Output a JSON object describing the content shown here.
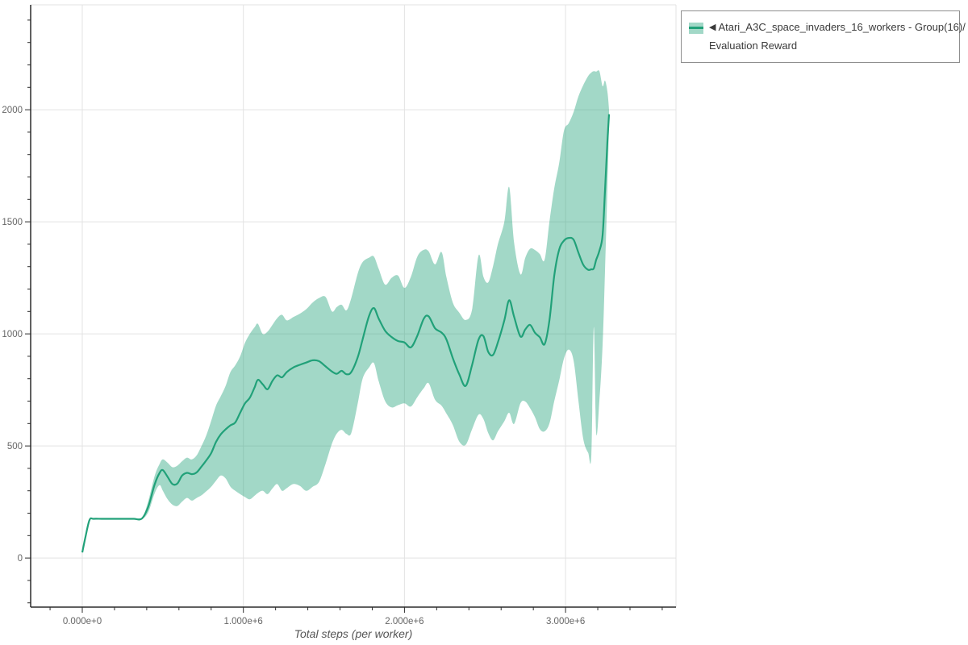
{
  "legend": {
    "toggle_icon": "◀",
    "lines": [
      "Atari_A3C_space_invaders_16_workers - Group(16)/",
      "Evaluation Reward"
    ]
  },
  "chart_data": {
    "type": "line",
    "title": "",
    "xlabel": "Total steps (per worker)",
    "ylabel": "",
    "grid": true,
    "legend_position": "top-right-outside",
    "x_unit": "steps (values in millions)",
    "x_axis": {
      "range_e6": [
        -0.3205,
        3.6855
      ],
      "major_ticks": [
        {
          "v": 0,
          "label": "0.000e+0"
        },
        {
          "v": 1,
          "label": "1.000e+6"
        },
        {
          "v": 2,
          "label": "2.000e+6"
        },
        {
          "v": 3,
          "label": "3.000e+6"
        }
      ],
      "minor_tick_step_e6": 0.2,
      "minor_tick_range_e6": [
        -0.2,
        3.6
      ]
    },
    "y_axis": {
      "range": [
        -219,
        2468
      ],
      "major_ticks": [
        {
          "v": 0,
          "label": "0"
        },
        {
          "v": 500,
          "label": "500"
        },
        {
          "v": 1000,
          "label": "1000"
        },
        {
          "v": 1500,
          "label": "1500"
        },
        {
          "v": 2000,
          "label": "2000"
        }
      ],
      "minor_tick_step": 100,
      "minor_tick_range": [
        -200,
        2400
      ]
    },
    "colors": {
      "line": "#21a179",
      "band": "#21a179",
      "band_opacity": 0.42,
      "grid": "#e3e3e3",
      "axis": "#2b2b2b",
      "tick_label": "#666666",
      "axis_title": "#555555"
    },
    "series": [
      {
        "name": "Atari_A3C_space_invaders_16_workers - Group(16)/Evaluation Reward",
        "x_e6": [
          0.0,
          0.02,
          0.045,
          0.07,
          0.12,
          0.17,
          0.22,
          0.27,
          0.32,
          0.37,
          0.41,
          0.45,
          0.48,
          0.5,
          0.53,
          0.56,
          0.59,
          0.62,
          0.65,
          0.68,
          0.71,
          0.74,
          0.77,
          0.8,
          0.83,
          0.86,
          0.89,
          0.92,
          0.95,
          0.98,
          1.01,
          1.04,
          1.07,
          1.09,
          1.12,
          1.15,
          1.18,
          1.21,
          1.24,
          1.27,
          1.31,
          1.35,
          1.39,
          1.43,
          1.47,
          1.51,
          1.55,
          1.58,
          1.61,
          1.64,
          1.67,
          1.71,
          1.74,
          1.78,
          1.81,
          1.84,
          1.88,
          1.92,
          1.96,
          2.0,
          2.04,
          2.08,
          2.12,
          2.15,
          2.19,
          2.23,
          2.26,
          2.3,
          2.34,
          2.38,
          2.42,
          2.46,
          2.49,
          2.52,
          2.55,
          2.58,
          2.62,
          2.65,
          2.68,
          2.72,
          2.75,
          2.78,
          2.81,
          2.84,
          2.87,
          2.9,
          2.93,
          2.96,
          2.99,
          3.02,
          3.05,
          3.08,
          3.11,
          3.14,
          3.16,
          3.175,
          3.19,
          3.21,
          3.23,
          3.245,
          3.26,
          3.27
        ],
        "mean": [
          25,
          95,
          170,
          175,
          175,
          175,
          175,
          175,
          175,
          176,
          230,
          330,
          380,
          392,
          362,
          330,
          332,
          368,
          380,
          374,
          382,
          408,
          436,
          468,
          518,
          552,
          574,
          592,
          605,
          648,
          690,
          715,
          762,
          795,
          775,
          753,
          790,
          815,
          806,
          830,
          850,
          862,
          872,
          882,
          878,
          855,
          832,
          822,
          835,
          820,
          830,
          896,
          975,
          1080,
          1115,
          1068,
          1014,
          986,
          968,
          962,
          940,
          992,
          1068,
          1078,
          1025,
          1006,
          976,
          892,
          820,
          768,
          862,
          975,
          990,
          920,
          906,
          962,
          1060,
          1150,
          1078,
          988,
          1020,
          1040,
          1005,
          985,
          954,
          1060,
          1260,
          1375,
          1416,
          1428,
          1420,
          1362,
          1308,
          1286,
          1288,
          1292,
          1330,
          1370,
          1440,
          1640,
          1860,
          1980
        ],
        "lower": [
          25,
          95,
          170,
          173,
          173,
          173,
          173,
          173,
          173,
          174,
          205,
          290,
          325,
          300,
          262,
          238,
          232,
          252,
          268,
          256,
          268,
          280,
          298,
          318,
          345,
          368,
          355,
          318,
          300,
          285,
          272,
          262,
          278,
          290,
          300,
          285,
          310,
          330,
          300,
          312,
          330,
          322,
          300,
          318,
          340,
          420,
          510,
          555,
          572,
          554,
          558,
          690,
          800,
          850,
          870,
          788,
          700,
          672,
          682,
          690,
          676,
          718,
          758,
          780,
          706,
          680,
          645,
          594,
          520,
          505,
          575,
          640,
          620,
          558,
          525,
          565,
          610,
          648,
          598,
          690,
          698,
          668,
          628,
          575,
          565,
          600,
          700,
          790,
          890,
          930,
          880,
          700,
          530,
          470,
          462,
          1030,
          560,
          700,
          950,
          1280,
          1650,
          1940
        ],
        "upper": [
          25,
          95,
          170,
          177,
          177,
          177,
          177,
          177,
          177,
          178,
          255,
          368,
          420,
          440,
          425,
          405,
          412,
          432,
          448,
          440,
          458,
          500,
          548,
          612,
          680,
          722,
          768,
          830,
          860,
          900,
          960,
          1000,
          1030,
          1045,
          1000,
          1010,
          1040,
          1070,
          1085,
          1060,
          1075,
          1090,
          1110,
          1140,
          1160,
          1165,
          1100,
          1120,
          1130,
          1105,
          1160,
          1270,
          1320,
          1340,
          1345,
          1290,
          1220,
          1250,
          1260,
          1205,
          1255,
          1345,
          1375,
          1368,
          1310,
          1365,
          1255,
          1140,
          1095,
          1062,
          1110,
          1350,
          1255,
          1230,
          1302,
          1400,
          1500,
          1655,
          1410,
          1266,
          1340,
          1380,
          1374,
          1356,
          1331,
          1500,
          1650,
          1760,
          1906,
          1940,
          1990,
          2060,
          2110,
          2150,
          2166,
          2172,
          2170,
          2172,
          2105,
          2130,
          2080,
          2000
        ]
      }
    ]
  }
}
